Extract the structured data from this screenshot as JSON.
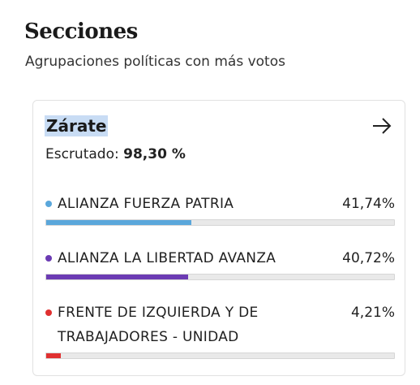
{
  "header": {
    "title": "Secciones",
    "subtitle": "Agrupaciones políticas con más votos"
  },
  "card": {
    "title": "Zárate",
    "scrutiny_label": "Escrutado:",
    "scrutiny_value": "98,30 %",
    "arrow_icon": "arrow-right-icon",
    "parties": [
      {
        "name": "ALIANZA FUERZA PATRIA",
        "percent": "41,74%",
        "share": 0.4174,
        "color": "#5aa7db"
      },
      {
        "name": "ALIANZA LA LIBERTAD AVANZA",
        "percent": "40,72%",
        "share": 0.4072,
        "color": "#6b3bb3"
      },
      {
        "name": "FRENTE DE IZQUIERDA Y DE TRABAJADORES - UNIDAD",
        "percent": "4,21%",
        "share": 0.0421,
        "color": "#e03030"
      }
    ]
  }
}
